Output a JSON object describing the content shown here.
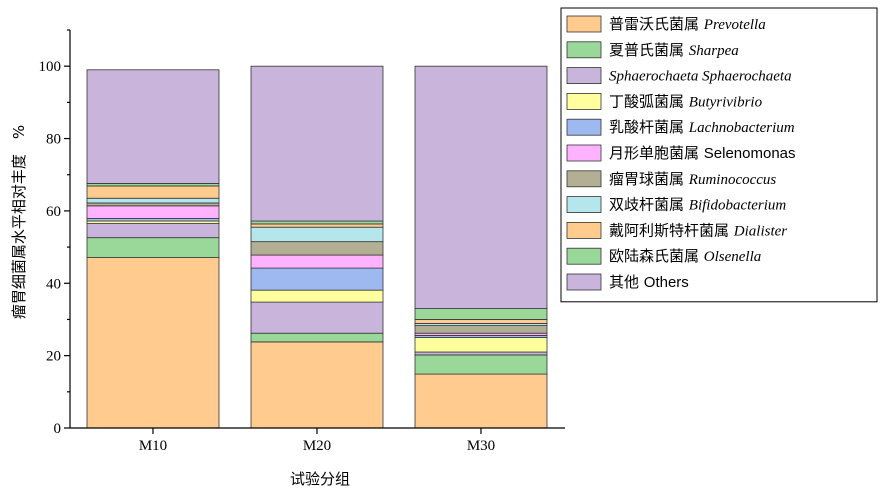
{
  "chart_data": {
    "type": "bar",
    "stacked": true,
    "xlabel": "试验分组",
    "ylabel": "瘤胃细菌属水平相对丰度　%",
    "ylim": [
      0,
      110
    ],
    "yticks": [
      0,
      20,
      40,
      60,
      80,
      100
    ],
    "categories": [
      "M10",
      "M20",
      "M30"
    ],
    "legend_position": "top-right",
    "series": [
      {
        "name_cn": "普雷沃氏菌属",
        "name_latin": "Prevotella",
        "latin_style": "italic",
        "color": "#FFCB8E",
        "values": [
          47.1,
          23.8,
          14.9
        ]
      },
      {
        "name_cn": "夏普氏菌属",
        "name_latin": "Sharpea",
        "latin_style": "italic",
        "color": "#9AD89A",
        "values": [
          5.5,
          2.4,
          5.3
        ]
      },
      {
        "name_cn": "",
        "name_latin": "Sphaerochaeta Sphaerochaeta",
        "latin_style": "italic",
        "color": "#C9B5DB",
        "values": [
          3.9,
          8.6,
          0.8
        ]
      },
      {
        "name_cn": "丁酸弧菌属",
        "name_latin": "Butyrivibrio",
        "latin_style": "italic",
        "color": "#FFFF9E",
        "values": [
          0.7,
          3.3,
          4.0
        ]
      },
      {
        "name_cn": "乳酸杆菌属",
        "name_latin": "Lachnobacterium",
        "latin_style": "italic",
        "color": "#9DB9F0",
        "values": [
          0.7,
          6.1,
          0.6
        ]
      },
      {
        "name_cn": "月形单胞菌属",
        "name_latin": "Selenomonas",
        "latin_style": "normal",
        "color": "#FFB3FF",
        "values": [
          3.5,
          3.6,
          0.6
        ]
      },
      {
        "name_cn": "瘤胃球菌属",
        "name_latin": "Ruminococcus",
        "latin_style": "italic",
        "color": "#B3AF94",
        "values": [
          0.8,
          3.7,
          2.1
        ]
      },
      {
        "name_cn": "双歧杆菌属",
        "name_latin": "Bifidobacterium",
        "latin_style": "italic",
        "color": "#B5E6EC",
        "values": [
          1.3,
          4.0,
          0.6
        ]
      },
      {
        "name_cn": "戴阿利斯特杆菌属",
        "name_latin": "Dialister",
        "latin_style": "italic",
        "color": "#FFCB8E",
        "values": [
          3.4,
          0.9,
          1.1
        ]
      },
      {
        "name_cn": "欧陆森氏菌属",
        "name_latin": "Olsenella",
        "latin_style": "italic",
        "color": "#9AD89A",
        "values": [
          0.7,
          0.8,
          3.0
        ]
      },
      {
        "name_cn": "其他",
        "name_latin": "Others",
        "latin_style": "normal",
        "color": "#C9B5DB",
        "values": [
          31.4,
          42.8,
          67.0
        ]
      }
    ]
  }
}
